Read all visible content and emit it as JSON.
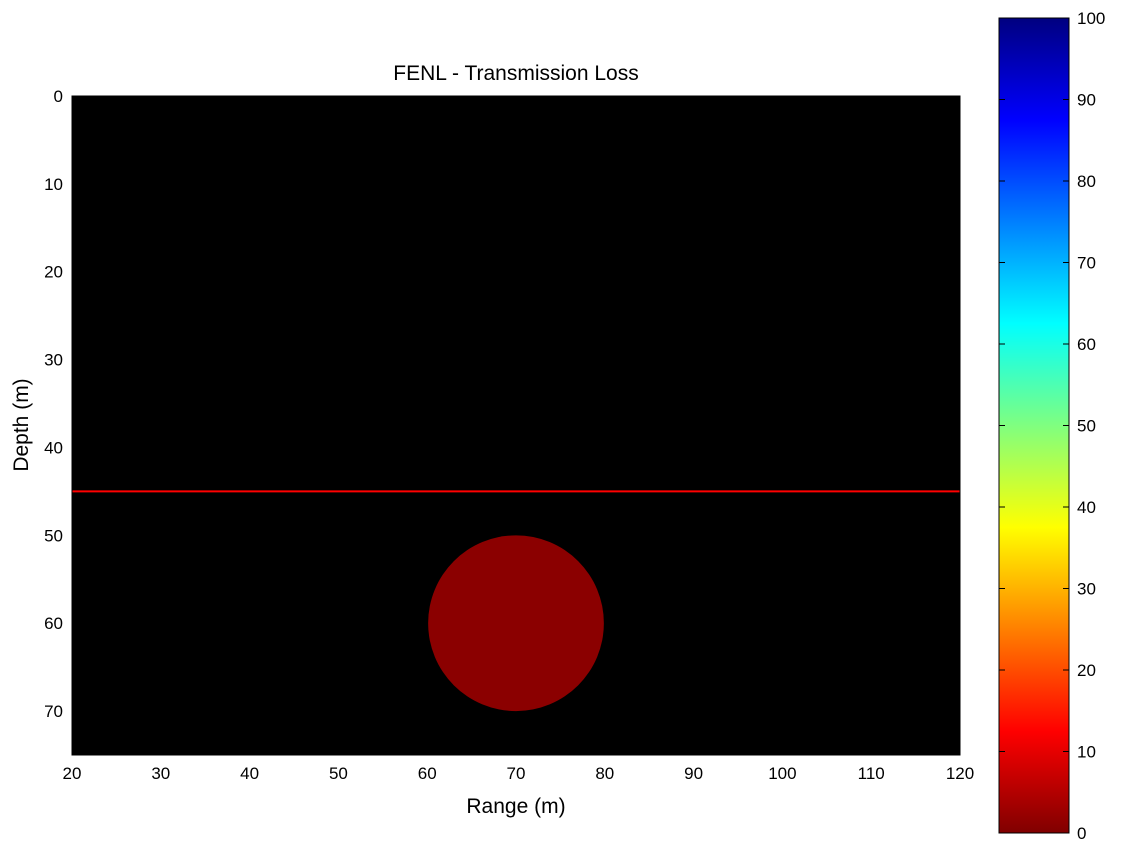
{
  "chart_data": {
    "type": "heatmap",
    "title": "FENL - Transmission Loss",
    "xlabel": "Range (m)",
    "ylabel": "Depth (m)",
    "xlim": [
      20,
      120
    ],
    "ylim": [
      0,
      75
    ],
    "y_reversed": true,
    "x_ticks": [
      20,
      30,
      40,
      50,
      60,
      70,
      80,
      90,
      100,
      110,
      120
    ],
    "y_ticks": [
      0,
      10,
      20,
      30,
      40,
      50,
      60,
      70
    ],
    "colorbar": {
      "colormap": "jet-reversed",
      "range": [
        0,
        100
      ],
      "ticks": [
        0,
        10,
        20,
        30,
        40,
        50,
        60,
        70,
        80,
        90,
        100
      ]
    },
    "field_range": [
      18,
      62
    ],
    "reference_line": {
      "depth": 45,
      "color": "#ff0000"
    },
    "target": {
      "range": 70,
      "depth": 60,
      "radius": 10,
      "value": 0,
      "color": "#8b0000"
    }
  }
}
